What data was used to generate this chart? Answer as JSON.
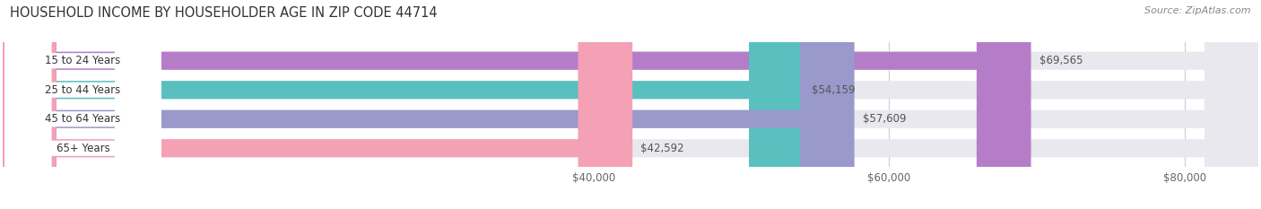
{
  "title": "HOUSEHOLD INCOME BY HOUSEHOLDER AGE IN ZIP CODE 44714",
  "source": "Source: ZipAtlas.com",
  "categories": [
    "15 to 24 Years",
    "25 to 44 Years",
    "45 to 64 Years",
    "65+ Years"
  ],
  "values": [
    69565,
    54159,
    57609,
    42592
  ],
  "bar_colors": [
    "#b57dc8",
    "#5abfbf",
    "#9999cc",
    "#f4a0b5"
  ],
  "value_labels": [
    "$69,565",
    "$54,159",
    "$57,609",
    "$42,592"
  ],
  "xlim_min": 0,
  "xlim_max": 85000,
  "xticks": [
    40000,
    60000,
    80000
  ],
  "xtick_labels": [
    "$40,000",
    "$60,000",
    "$80,000"
  ],
  "background_color": "#ffffff",
  "bar_bg_color": "#e8e8ee",
  "title_fontsize": 10.5,
  "label_fontsize": 8.5,
  "tick_fontsize": 8.5,
  "source_fontsize": 8
}
